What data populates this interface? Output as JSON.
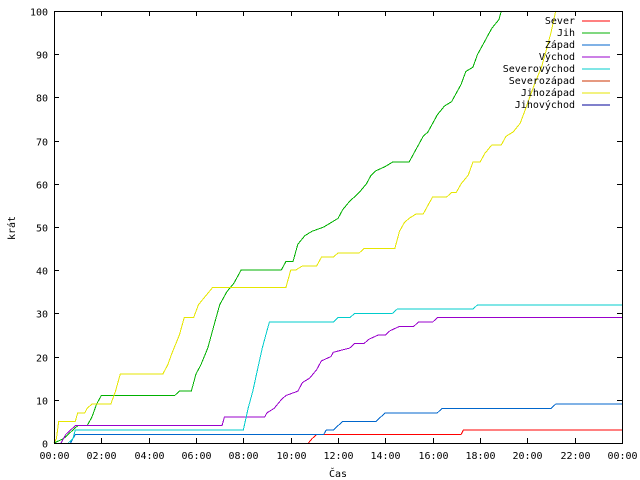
{
  "chart_data": {
    "type": "line",
    "title": "",
    "xlabel": "Čas",
    "ylabel": "krát",
    "xlim": [
      0,
      24
    ],
    "ylim": [
      0,
      100
    ],
    "x_ticks": [
      {
        "value": 0,
        "label": "00:00"
      },
      {
        "value": 2,
        "label": "02:00"
      },
      {
        "value": 4,
        "label": "04:00"
      },
      {
        "value": 6,
        "label": "06:00"
      },
      {
        "value": 8,
        "label": "08:00"
      },
      {
        "value": 10,
        "label": "10:00"
      },
      {
        "value": 12,
        "label": "12:00"
      },
      {
        "value": 14,
        "label": "14:00"
      },
      {
        "value": 16,
        "label": "16:00"
      },
      {
        "value": 18,
        "label": "18:00"
      },
      {
        "value": 20,
        "label": "20:00"
      },
      {
        "value": 22,
        "label": "22:00"
      },
      {
        "value": 24,
        "label": "00:00"
      }
    ],
    "y_ticks": [
      {
        "value": 0,
        "label": "0"
      },
      {
        "value": 10,
        "label": "10"
      },
      {
        "value": 20,
        "label": "20"
      },
      {
        "value": 30,
        "label": "30"
      },
      {
        "value": 40,
        "label": "40"
      },
      {
        "value": 50,
        "label": "50"
      },
      {
        "value": 60,
        "label": "60"
      },
      {
        "value": 70,
        "label": "70"
      },
      {
        "value": 80,
        "label": "80"
      },
      {
        "value": 90,
        "label": "90"
      },
      {
        "value": 100,
        "label": "100"
      }
    ],
    "grid": false,
    "legend_position": "top-right",
    "series": [
      {
        "name": "Sever",
        "color": "#ff0000",
        "points": [
          [
            10.75,
            0
          ],
          [
            10.9,
            1
          ],
          [
            11.1,
            2
          ],
          [
            17.2,
            2
          ],
          [
            17.3,
            3
          ],
          [
            24,
            3
          ]
        ]
      },
      {
        "name": "Jih",
        "color": "#00b000",
        "points": [
          [
            0,
            0
          ],
          [
            0.4,
            1
          ],
          [
            0.6,
            2
          ],
          [
            0.8,
            3
          ],
          [
            1.0,
            4
          ],
          [
            1.4,
            4
          ],
          [
            1.6,
            6
          ],
          [
            1.8,
            9
          ],
          [
            2.0,
            11
          ],
          [
            5.1,
            11
          ],
          [
            5.3,
            12
          ],
          [
            5.8,
            12
          ],
          [
            6.0,
            16
          ],
          [
            6.2,
            18
          ],
          [
            6.5,
            22
          ],
          [
            6.8,
            28
          ],
          [
            7.0,
            32
          ],
          [
            7.3,
            35
          ],
          [
            7.6,
            37
          ],
          [
            7.9,
            40
          ],
          [
            9.6,
            40
          ],
          [
            9.8,
            42
          ],
          [
            10.1,
            42
          ],
          [
            10.3,
            46
          ],
          [
            10.6,
            48
          ],
          [
            10.9,
            49
          ],
          [
            11.4,
            50
          ],
          [
            11.7,
            51
          ],
          [
            12.0,
            52
          ],
          [
            12.2,
            54
          ],
          [
            12.5,
            56
          ],
          [
            12.7,
            57
          ],
          [
            12.9,
            58
          ],
          [
            13.2,
            60
          ],
          [
            13.4,
            62
          ],
          [
            13.6,
            63
          ],
          [
            14.0,
            64
          ],
          [
            14.3,
            65
          ],
          [
            15.0,
            65
          ],
          [
            15.2,
            67
          ],
          [
            15.6,
            71
          ],
          [
            15.8,
            72
          ],
          [
            16.0,
            74
          ],
          [
            16.2,
            76
          ],
          [
            16.5,
            78
          ],
          [
            16.8,
            79
          ],
          [
            17.0,
            81
          ],
          [
            17.2,
            83
          ],
          [
            17.4,
            86
          ],
          [
            17.7,
            87
          ],
          [
            17.9,
            90
          ],
          [
            18.1,
            92
          ],
          [
            18.3,
            94
          ],
          [
            18.5,
            96
          ],
          [
            18.8,
            98
          ],
          [
            18.9,
            100
          ]
        ]
      },
      {
        "name": "Západ",
        "color": "#0066cc",
        "points": [
          [
            0.7,
            0
          ],
          [
            0.8,
            1
          ],
          [
            0.9,
            2
          ],
          [
            11.4,
            2
          ],
          [
            11.5,
            3
          ],
          [
            11.8,
            3
          ],
          [
            12.0,
            4
          ],
          [
            12.2,
            5
          ],
          [
            13.6,
            5
          ],
          [
            13.8,
            6
          ],
          [
            14.0,
            7
          ],
          [
            16.2,
            7
          ],
          [
            16.4,
            8
          ],
          [
            21.0,
            8
          ],
          [
            21.2,
            9
          ],
          [
            24,
            9
          ]
        ]
      },
      {
        "name": "Východ",
        "color": "#9900cc",
        "points": [
          [
            0.3,
            0
          ],
          [
            0.5,
            2
          ],
          [
            0.7,
            3
          ],
          [
            0.9,
            4
          ],
          [
            7.1,
            4
          ],
          [
            7.2,
            6
          ],
          [
            8.9,
            6
          ],
          [
            9.0,
            7
          ],
          [
            9.3,
            8
          ],
          [
            9.6,
            10
          ],
          [
            9.8,
            11
          ],
          [
            10.3,
            12
          ],
          [
            10.5,
            14
          ],
          [
            10.8,
            15
          ],
          [
            11.1,
            17
          ],
          [
            11.3,
            19
          ],
          [
            11.7,
            20
          ],
          [
            11.8,
            21
          ],
          [
            12.5,
            22
          ],
          [
            12.7,
            23
          ],
          [
            13.1,
            23
          ],
          [
            13.3,
            24
          ],
          [
            13.7,
            25
          ],
          [
            14.0,
            25
          ],
          [
            14.2,
            26
          ],
          [
            14.6,
            27
          ],
          [
            15.2,
            27
          ],
          [
            15.4,
            28
          ],
          [
            16.0,
            28
          ],
          [
            16.2,
            29
          ],
          [
            24,
            29
          ]
        ]
      },
      {
        "name": "Severovýchod",
        "color": "#00cccc",
        "points": [
          [
            0.6,
            0
          ],
          [
            0.8,
            1
          ],
          [
            0.9,
            3
          ],
          [
            8.0,
            3
          ],
          [
            8.2,
            8
          ],
          [
            8.4,
            12
          ],
          [
            8.6,
            17
          ],
          [
            8.8,
            22
          ],
          [
            8.95,
            25
          ],
          [
            9.1,
            28
          ],
          [
            11.8,
            28
          ],
          [
            12.0,
            29
          ],
          [
            12.5,
            29
          ],
          [
            12.7,
            30
          ],
          [
            14.3,
            30
          ],
          [
            14.5,
            31
          ],
          [
            17.7,
            31
          ],
          [
            17.9,
            32
          ],
          [
            24,
            32
          ]
        ]
      },
      {
        "name": "Severozápad",
        "color": "#cc3300",
        "points": []
      },
      {
        "name": "Jihozápad",
        "color": "#e6e600",
        "points": [
          [
            0,
            0
          ],
          [
            0.1,
            1
          ],
          [
            0.2,
            5
          ],
          [
            0.9,
            5
          ],
          [
            1.0,
            7
          ],
          [
            1.3,
            7
          ],
          [
            1.4,
            8
          ],
          [
            1.6,
            9
          ],
          [
            2.4,
            9
          ],
          [
            2.6,
            12
          ],
          [
            2.8,
            16
          ],
          [
            4.6,
            16
          ],
          [
            4.8,
            18
          ],
          [
            5.0,
            21
          ],
          [
            5.3,
            25
          ],
          [
            5.5,
            29
          ],
          [
            5.9,
            29
          ],
          [
            6.1,
            32
          ],
          [
            6.4,
            34
          ],
          [
            6.7,
            36
          ],
          [
            9.8,
            36
          ],
          [
            10.0,
            40
          ],
          [
            10.2,
            40
          ],
          [
            10.5,
            41
          ],
          [
            11.1,
            41
          ],
          [
            11.3,
            43
          ],
          [
            11.8,
            43
          ],
          [
            12.0,
            44
          ],
          [
            12.9,
            44
          ],
          [
            13.1,
            45
          ],
          [
            14.4,
            45
          ],
          [
            14.6,
            49
          ],
          [
            14.8,
            51
          ],
          [
            15.0,
            52
          ],
          [
            15.3,
            53
          ],
          [
            15.6,
            53
          ],
          [
            15.8,
            55
          ],
          [
            16.0,
            57
          ],
          [
            16.6,
            57
          ],
          [
            16.8,
            58
          ],
          [
            17.0,
            58
          ],
          [
            17.2,
            60
          ],
          [
            17.5,
            62
          ],
          [
            17.7,
            65
          ],
          [
            18.0,
            65
          ],
          [
            18.2,
            67
          ],
          [
            18.5,
            69
          ],
          [
            18.9,
            69
          ],
          [
            19.1,
            71
          ],
          [
            19.4,
            72
          ],
          [
            19.7,
            74
          ],
          [
            19.9,
            77
          ],
          [
            20.1,
            80
          ],
          [
            20.3,
            83
          ],
          [
            20.6,
            87
          ],
          [
            20.8,
            91
          ],
          [
            21.0,
            95
          ],
          [
            21.2,
            100
          ]
        ]
      },
      {
        "name": "Jihovýchod",
        "color": "#000099",
        "points": []
      }
    ]
  }
}
